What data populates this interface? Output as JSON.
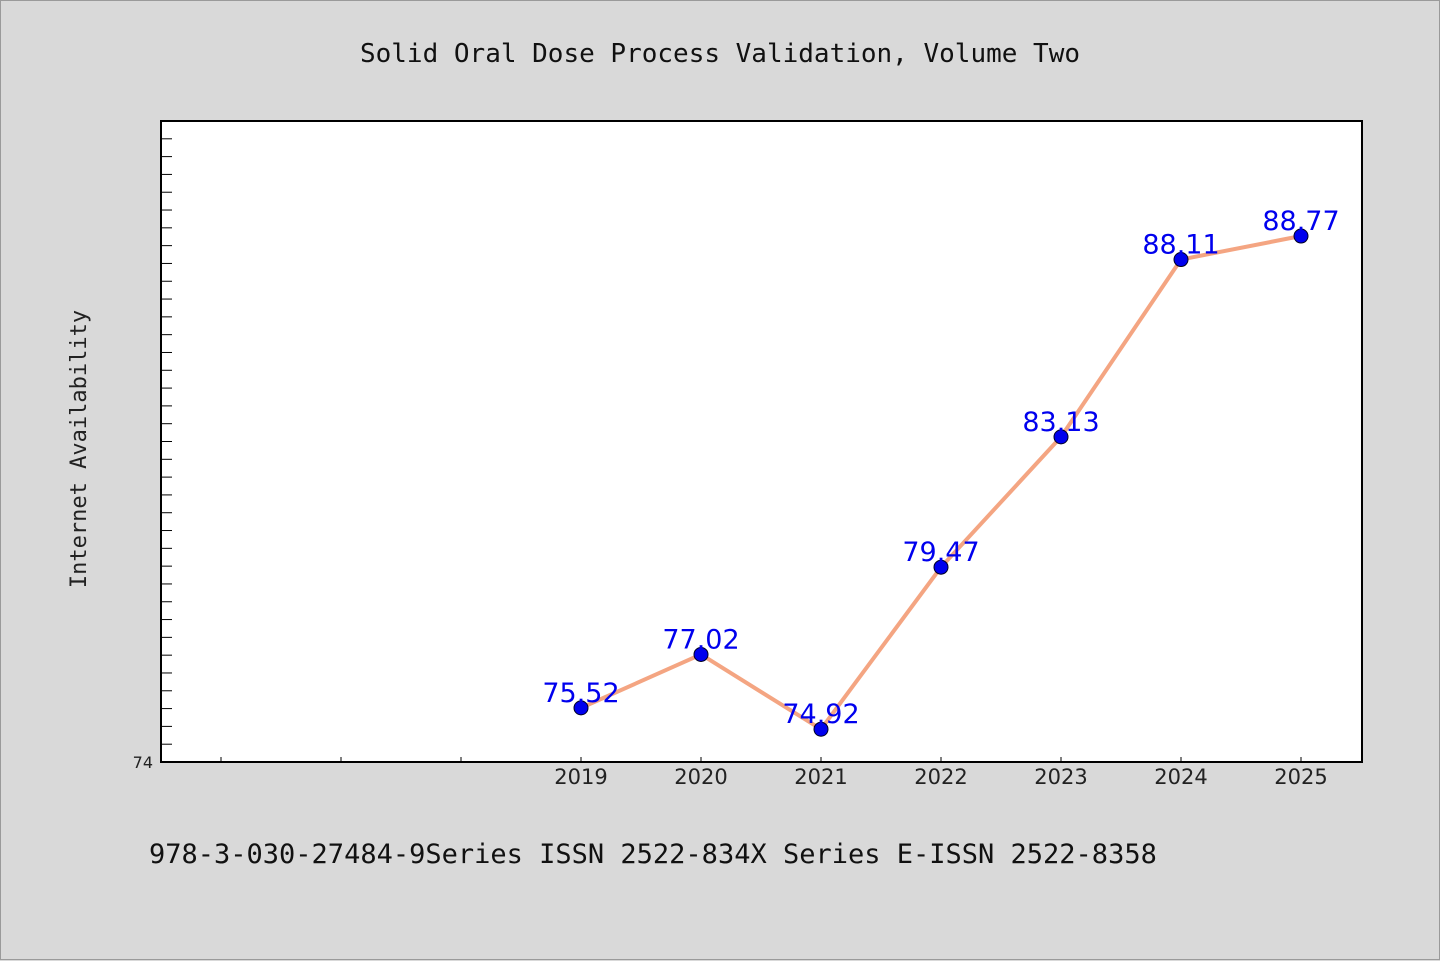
{
  "chart_data": {
    "type": "line",
    "title": "Solid Oral Dose Process Validation, Volume Two",
    "xlabel": "",
    "ylabel": "Internet Availability",
    "categories": [
      "2019",
      "2020",
      "2021",
      "2022",
      "2023",
      "2024",
      "2025"
    ],
    "series": [
      {
        "values": [
          75.52,
          77.02,
          74.92,
          79.47,
          83.13,
          88.11,
          88.77
        ]
      }
    ],
    "data_labels": [
      "75.52",
      "77.02",
      "74.92",
      "79.47",
      "83.13",
      "88.11",
      "88.77"
    ],
    "ylim": [
      74,
      92
    ],
    "ytick_labels": [
      "74"
    ],
    "grid": false,
    "line_color": "#f4a582",
    "marker_color": "#0000ee",
    "label_color": "#0000ee"
  },
  "footer": "978-3-030-27484-9Series ISSN 2522-834X Series E-ISSN 2522-8358"
}
